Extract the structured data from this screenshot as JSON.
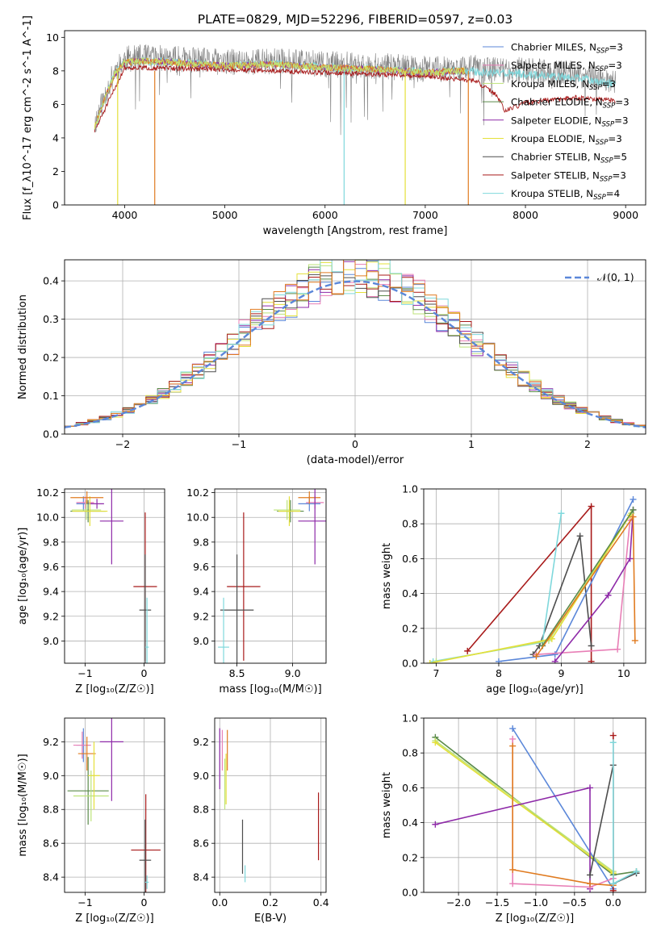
{
  "figure": {
    "title": "PLATE=0829, MJD=52296, FIBERID=0597, z=0.03"
  },
  "series_colors": {
    "Chabrier MILES": "#5b87d9",
    "Salpeter MILES": "#e87fb6",
    "Kroupa MILES": "#bde37a",
    "Chabrier ELODIE": "#5a8a4a",
    "Salpeter ELODIE": "#8e2aa8",
    "Kroupa ELODIE": "#e4e03a",
    "Chabrier STELIB": "#4d4d4d",
    "Salpeter STELIB": "#a81a1a",
    "Kroupa STELIB": "#7fd8dc",
    "extra_orange": "#e07b20",
    "data": "#808080",
    "gaussian": "#5b87d9"
  },
  "chart_data": [
    {
      "panel": "spectrum",
      "type": "line",
      "xlabel": "wavelength [Angstrom, rest frame]",
      "ylabel": "Flux [f_λ10^-17 erg cm^-2 s^-1 A^-1]",
      "xlim": [
        3400,
        9200
      ],
      "ylim": [
        0,
        10.4
      ],
      "xticks": [
        "4000",
        "5000",
        "6000",
        "7000",
        "8000",
        "9000"
      ],
      "yticks": [
        "0",
        "2",
        "4",
        "6",
        "8",
        "10"
      ],
      "grid": false,
      "legend_position": "right",
      "legend": [
        {
          "label": "Chabrier MILES, N",
          "sub": "SSP",
          "tail": "=3"
        },
        {
          "label": "Salpeter MILES, N",
          "sub": "SSP",
          "tail": "=3"
        },
        {
          "label": "Kroupa MILES, N",
          "sub": "SSP",
          "tail": "=3"
        },
        {
          "label": "Chabrier ELODIE, N",
          "sub": "SSP",
          "tail": "=3"
        },
        {
          "label": "Salpeter ELODIE, N",
          "sub": "SSP",
          "tail": "=3"
        },
        {
          "label": "Kroupa ELODIE, N",
          "sub": "SSP",
          "tail": "=3"
        },
        {
          "label": "Chabrier STELIB, N",
          "sub": "SSP",
          "tail": "=5"
        },
        {
          "label": "Salpeter STELIB, N",
          "sub": "SSP",
          "tail": "=3"
        },
        {
          "label": "Kroupa STELIB, N",
          "sub": "SSP",
          "tail": "=4"
        }
      ],
      "data_trend": [
        [
          3700,
          4.8
        ],
        [
          3800,
          6.5
        ],
        [
          3900,
          8.0
        ],
        [
          4000,
          8.7
        ],
        [
          4200,
          8.8
        ],
        [
          4500,
          8.7
        ],
        [
          5000,
          8.5
        ],
        [
          5500,
          8.6
        ],
        [
          6000,
          8.4
        ],
        [
          6500,
          8.3
        ],
        [
          7000,
          8.1
        ],
        [
          7400,
          8.2
        ],
        [
          8000,
          8.0
        ],
        [
          8500,
          7.8
        ],
        [
          8900,
          7.4
        ]
      ],
      "stelib_trend": [
        [
          3700,
          4.6
        ],
        [
          4000,
          8.4
        ],
        [
          5000,
          8.3
        ],
        [
          6000,
          8.1
        ],
        [
          7000,
          7.9
        ],
        [
          7500,
          7.6
        ],
        [
          7700,
          6.8
        ],
        [
          7800,
          5.8
        ],
        [
          8000,
          6.3
        ],
        [
          8500,
          6.6
        ],
        [
          8900,
          6.4
        ]
      ]
    },
    {
      "panel": "residual_histogram",
      "type": "line",
      "xlabel": "(data-model)/error",
      "ylabel": "Normed distribution",
      "xlim": [
        -2.5,
        2.5
      ],
      "ylim": [
        0,
        0.455
      ],
      "xticks": [
        "−2",
        "−1",
        "0",
        "1",
        "2"
      ],
      "yticks": [
        "0.0",
        "0.1",
        "0.2",
        "0.3",
        "0.4"
      ],
      "grid": true,
      "legend_position": "top-right",
      "legend_label": "𝒩(0, 1)",
      "bin_width": 0.1,
      "distribution": "gaussian",
      "mean": 0,
      "sigma": 1
    },
    {
      "panel": "age_vs_Z",
      "type": "scatter",
      "xlabel": "Z [log₁₀(Z/Z☉)]",
      "ylabel": "age  [log₁₀(age/yr)]",
      "xlim": [
        -1.35,
        0.35
      ],
      "ylim": [
        8.82,
        10.23
      ],
      "xticks": [
        "−1",
        "0"
      ],
      "yticks": [
        "9.0",
        "9.2",
        "9.4",
        "9.6",
        "9.8",
        "10.0",
        "10.2"
      ],
      "grid": true,
      "points": [
        {
          "series": "Chabrier MILES",
          "x": -1.03,
          "y": 10.11,
          "xerr": 0.12,
          "yerr": 0.06
        },
        {
          "series": "Salpeter MILES",
          "x": -1.0,
          "y": 10.12,
          "xerr": 0.15,
          "yerr": 0.05
        },
        {
          "series": "Kroupa MILES",
          "x": -0.98,
          "y": 10.06,
          "xerr": 0.25,
          "yerr": 0.08
        },
        {
          "series": "Chabrier ELODIE",
          "x": -0.95,
          "y": 10.05,
          "xerr": 0.3,
          "yerr": 0.09
        },
        {
          "series": "Salpeter ELODIE",
          "x": -0.8,
          "y": 10.11,
          "xerr": 0.12,
          "yerr": 0.04
        },
        {
          "series": "Kroupa ELODIE",
          "x": -0.92,
          "y": 10.05,
          "xerr": 0.3,
          "yerr": 0.12
        },
        {
          "series": "extra_orange",
          "x": -0.97,
          "y": 10.16,
          "xerr": 0.28,
          "yerr": 0.05
        },
        {
          "series": "Salpeter ELODIE",
          "x": -0.55,
          "y": 9.97,
          "xerr": 0.2,
          "yerr": 0.35
        },
        {
          "series": "Salpeter STELIB",
          "x": 0.02,
          "y": 9.44,
          "xerr": 0.2,
          "yerr": 0.6
        },
        {
          "series": "Chabrier STELIB",
          "x": 0.02,
          "y": 9.25,
          "xerr": 0.1,
          "yerr": 0.45
        },
        {
          "series": "Kroupa STELIB",
          "x": 0.05,
          "y": 8.95,
          "xerr": 0.03,
          "yerr": 0.4
        }
      ]
    },
    {
      "panel": "age_vs_mass",
      "type": "scatter",
      "xlabel": "mass [log₁₀(M/M☉)]",
      "ylabel": "",
      "xlim": [
        8.3,
        9.3
      ],
      "ylim": [
        8.82,
        10.23
      ],
      "xticks": [
        "8.5",
        "9.0"
      ],
      "yticks": [
        "9.0",
        "9.2",
        "9.4",
        "9.6",
        "9.8",
        "10.0",
        "10.2"
      ],
      "grid": true,
      "points": [
        {
          "series": "Chabrier MILES",
          "x": 9.15,
          "y": 10.11,
          "xerr": 0.1,
          "yerr": 0.06
        },
        {
          "series": "Salpeter MILES",
          "x": 9.2,
          "y": 10.12,
          "xerr": 0.08,
          "yerr": 0.05
        },
        {
          "series": "Kroupa MILES",
          "x": 8.95,
          "y": 10.06,
          "xerr": 0.12,
          "yerr": 0.08
        },
        {
          "series": "Chabrier ELODIE",
          "x": 8.98,
          "y": 10.05,
          "xerr": 0.12,
          "yerr": 0.09
        },
        {
          "series": "Kroupa ELODIE",
          "x": 8.97,
          "y": 10.05,
          "xerr": 0.1,
          "yerr": 0.12
        },
        {
          "series": "extra_orange",
          "x": 9.15,
          "y": 10.16,
          "xerr": 0.1,
          "yerr": 0.05
        },
        {
          "series": "Salpeter ELODIE",
          "x": 9.2,
          "y": 9.97,
          "xerr": 0.15,
          "yerr": 0.35
        },
        {
          "series": "Salpeter STELIB",
          "x": 8.56,
          "y": 9.44,
          "xerr": 0.15,
          "yerr": 0.6
        },
        {
          "series": "Chabrier STELIB",
          "x": 8.5,
          "y": 9.25,
          "xerr": 0.15,
          "yerr": 0.45
        },
        {
          "series": "Kroupa STELIB",
          "x": 8.38,
          "y": 8.95,
          "xerr": 0.05,
          "yerr": 0.4
        }
      ]
    },
    {
      "panel": "mass_weight_vs_age",
      "type": "line",
      "xlabel": "age  [log₁₀(age/yr)]",
      "ylabel": "mass weight",
      "xlim": [
        6.8,
        10.35
      ],
      "ylim": [
        0,
        1
      ],
      "xticks": [
        "7",
        "8",
        "9",
        "10"
      ],
      "yticks": [
        "0.0",
        "0.2",
        "0.4",
        "0.6",
        "0.8",
        "1.0"
      ],
      "grid": true,
      "series": [
        {
          "name": "Salpeter STELIB",
          "points": [
            [
              7.5,
              0.07
            ],
            [
              9.48,
              0.9
            ],
            [
              9.48,
              0.01
            ]
          ]
        },
        {
          "name": "Chabrier STELIB",
          "points": [
            [
              8.55,
              0.05
            ],
            [
              8.65,
              0.1
            ],
            [
              9.3,
              0.73
            ],
            [
              9.48,
              0.1
            ]
          ]
        },
        {
          "name": "Kroupa STELIB",
          "points": [
            [
              6.95,
              0.01
            ],
            [
              8.7,
              0.12
            ],
            [
              9.0,
              0.86
            ]
          ]
        },
        {
          "name": "Chabrier MILES",
          "points": [
            [
              8.0,
              0.01
            ],
            [
              8.9,
              0.05
            ],
            [
              10.15,
              0.94
            ]
          ]
        },
        {
          "name": "Salpeter MILES",
          "points": [
            [
              8.6,
              0.05
            ],
            [
              9.9,
              0.08
            ],
            [
              10.1,
              0.82
            ]
          ]
        },
        {
          "name": "Salpeter ELODIE",
          "points": [
            [
              8.9,
              0.01
            ],
            [
              9.75,
              0.39
            ],
            [
              10.1,
              0.6
            ],
            [
              10.15,
              0.88
            ]
          ]
        },
        {
          "name": "Kroupa MILES",
          "points": [
            [
              7.0,
              0.01
            ],
            [
              8.8,
              0.13
            ],
            [
              10.12,
              0.86
            ]
          ]
        },
        {
          "name": "Kroupa ELODIE",
          "points": [
            [
              6.9,
              0.0
            ],
            [
              8.85,
              0.14
            ],
            [
              10.1,
              0.85
            ]
          ]
        },
        {
          "name": "Chabrier ELODIE",
          "points": [
            [
              8.7,
              0.1
            ],
            [
              10.15,
              0.88
            ]
          ]
        },
        {
          "name": "extra_orange",
          "points": [
            [
              8.6,
              0.04
            ],
            [
              10.15,
              0.84
            ],
            [
              10.18,
              0.13
            ]
          ]
        }
      ]
    },
    {
      "panel": "mass_vs_Z",
      "type": "scatter",
      "xlabel": "Z [log₁₀(Z/Z☉)]",
      "ylabel": "mass [log₁₀(M/M☉)]",
      "xlim": [
        -1.35,
        0.35
      ],
      "ylim": [
        8.31,
        9.34
      ],
      "xticks": [
        "−1",
        "0"
      ],
      "yticks": [
        "8.4",
        "8.6",
        "8.8",
        "9.0",
        "9.2"
      ],
      "grid": true,
      "points": [
        {
          "series": "Chabrier MILES",
          "x": -1.03,
          "y": 9.18,
          "xerr": 0.12,
          "yerr": 0.1
        },
        {
          "series": "Salpeter MILES",
          "x": -1.05,
          "y": 9.18,
          "xerr": 0.15,
          "yerr": 0.08
        },
        {
          "series": "extra_orange",
          "x": -0.97,
          "y": 9.13,
          "xerr": 0.15,
          "yerr": 0.1
        },
        {
          "series": "Chabrier ELODIE",
          "x": -0.95,
          "y": 8.91,
          "xerr": 0.35,
          "yerr": 0.2
        },
        {
          "series": "Kroupa MILES",
          "x": -0.9,
          "y": 8.88,
          "xerr": 0.3,
          "yerr": 0.15
        },
        {
          "series": "Kroupa ELODIE",
          "x": -0.85,
          "y": 9.0,
          "xerr": 0.1,
          "yerr": 0.2
        },
        {
          "series": "Salpeter ELODIE",
          "x": -0.55,
          "y": 9.2,
          "xerr": 0.2,
          "yerr": 0.35
        },
        {
          "series": "Salpeter STELIB",
          "x": 0.03,
          "y": 8.56,
          "xerr": 0.25,
          "yerr": 0.33
        },
        {
          "series": "Chabrier STELIB",
          "x": 0.02,
          "y": 8.5,
          "xerr": 0.1,
          "yerr": 0.24
        },
        {
          "series": "Kroupa STELIB",
          "x": 0.05,
          "y": 8.37,
          "xerr": 0.03,
          "yerr": 0.04
        }
      ]
    },
    {
      "panel": "mass_vs_EBV",
      "type": "scatter",
      "xlabel": "E(B-V)",
      "ylabel": "",
      "xlim": [
        -0.02,
        0.42
      ],
      "ylim": [
        8.31,
        9.34
      ],
      "xticks": [
        "0.0",
        "0.2",
        "0.4"
      ],
      "yticks": [
        "8.4",
        "8.6",
        "8.8",
        "9.0",
        "9.2"
      ],
      "grid": true,
      "points": [
        {
          "series": "Salpeter ELODIE",
          "x": 0.0,
          "y": 9.1,
          "xerr": 0,
          "yerr": 0.18
        },
        {
          "series": "Salpeter MILES",
          "x": 0.01,
          "y": 9.15,
          "xerr": 0,
          "yerr": 0.12
        },
        {
          "series": "extra_orange",
          "x": 0.03,
          "y": 9.15,
          "xerr": 0,
          "yerr": 0.12
        },
        {
          "series": "Kroupa MILES",
          "x": 0.02,
          "y": 8.95,
          "xerr": 0,
          "yerr": 0.15
        },
        {
          "series": "Kroupa ELODIE",
          "x": 0.025,
          "y": 8.98,
          "xerr": 0,
          "yerr": 0.15
        },
        {
          "series": "Chabrier STELIB",
          "x": 0.09,
          "y": 8.58,
          "xerr": 0,
          "yerr": 0.16
        },
        {
          "series": "Kroupa STELIB",
          "x": 0.1,
          "y": 8.42,
          "xerr": 0,
          "yerr": 0.05
        },
        {
          "series": "Salpeter STELIB",
          "x": 0.39,
          "y": 8.7,
          "xerr": 0,
          "yerr": 0.2
        }
      ]
    },
    {
      "panel": "mass_weight_vs_Z",
      "type": "line",
      "xlabel": "Z [log₁₀(Z/Z☉)]",
      "ylabel": "mass weight",
      "xlim": [
        -2.45,
        0.42
      ],
      "ylim": [
        0,
        1
      ],
      "xticks": [
        "−2.0",
        "−1.5",
        "−1.0",
        "−0.5",
        "0.0"
      ],
      "yticks": [
        "0.0",
        "0.2",
        "0.4",
        "0.6",
        "0.8",
        "1.0"
      ],
      "grid": true,
      "series": [
        {
          "name": "Chabrier ELODIE",
          "points": [
            [
              -2.3,
              0.89
            ],
            [
              0.0,
              0.1
            ],
            [
              0.3,
              0.12
            ]
          ]
        },
        {
          "name": "Kroupa MILES",
          "points": [
            [
              -2.3,
              0.87
            ],
            [
              0.0,
              0.12
            ]
          ]
        },
        {
          "name": "Kroupa ELODIE",
          "points": [
            [
              -2.3,
              0.86
            ],
            [
              0.0,
              0.11
            ]
          ]
        },
        {
          "name": "Chabrier MILES",
          "points": [
            [
              -1.3,
              0.94
            ],
            [
              0.0,
              0.02
            ]
          ]
        },
        {
          "name": "Salpeter ELODIE",
          "points": [
            [
              -2.3,
              0.39
            ],
            [
              -0.3,
              0.6
            ],
            [
              -0.3,
              0.02
            ]
          ]
        },
        {
          "name": "Salpeter MILES",
          "points": [
            [
              -1.3,
              0.88
            ],
            [
              -1.3,
              0.05
            ],
            [
              -0.3,
              0.03
            ],
            [
              0.0,
              0.08
            ]
          ]
        },
        {
          "name": "extra_orange",
          "points": [
            [
              -1.3,
              0.84
            ],
            [
              -1.3,
              0.13
            ],
            [
              -0.3,
              0.05
            ],
            [
              0.0,
              0.04
            ]
          ]
        },
        {
          "name": "Chabrier STELIB",
          "points": [
            [
              -0.3,
              0.1
            ],
            [
              0.0,
              0.73
            ],
            [
              0.0,
              0.05
            ],
            [
              0.3,
              0.11
            ]
          ]
        },
        {
          "name": "Salpeter STELIB",
          "points": [
            [
              0.0,
              0.9
            ],
            [
              0.0,
              0.01
            ]
          ]
        },
        {
          "name": "Kroupa STELIB",
          "points": [
            [
              0.0,
              0.86
            ],
            [
              0.0,
              0.05
            ],
            [
              0.3,
              0.12
            ]
          ]
        }
      ]
    }
  ]
}
